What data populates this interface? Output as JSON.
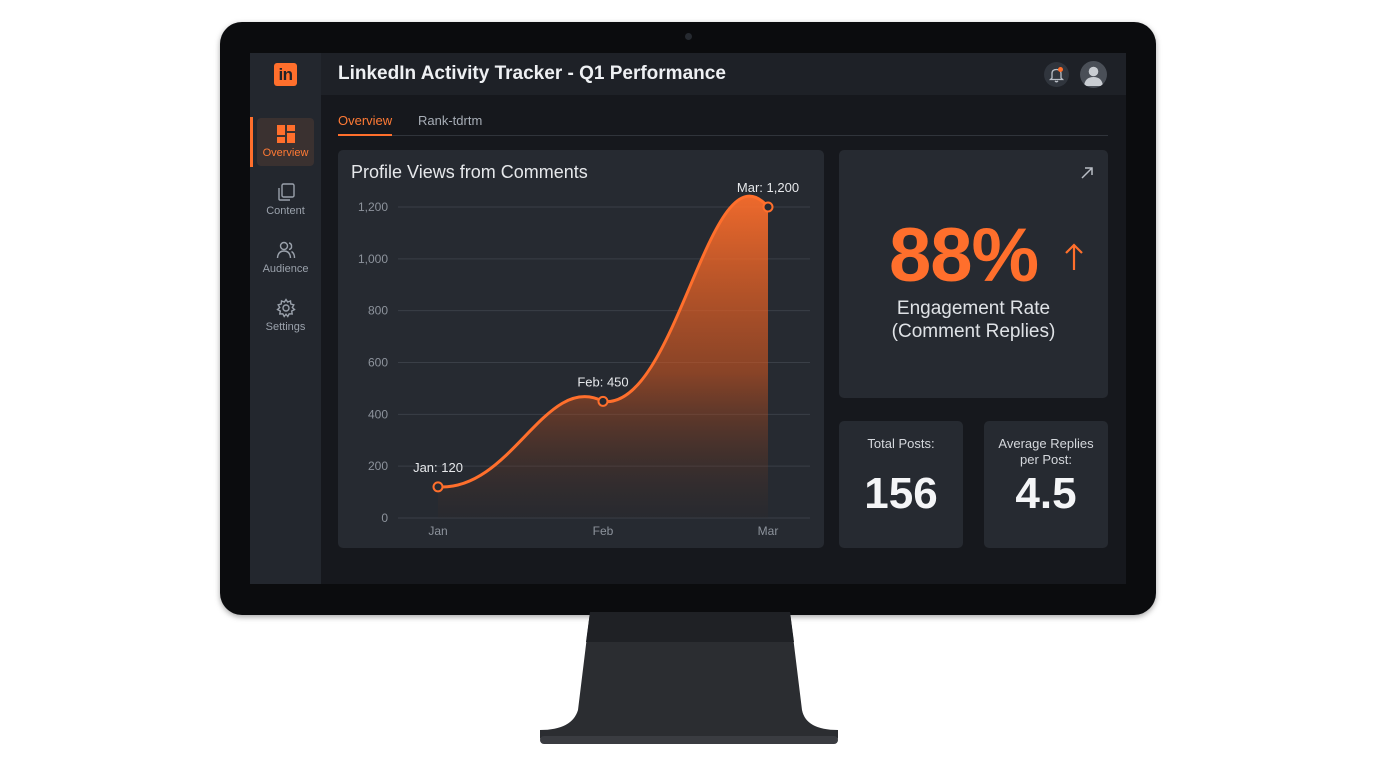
{
  "app": {
    "title": "LinkedIn Activity Tracker - Q1 Performance",
    "logo_text": "in",
    "accent": "#ff6f2c",
    "icons": [
      "bell-icon",
      "avatar-icon"
    ]
  },
  "sidebar": {
    "items": [
      {
        "label": "Overview",
        "icon": "dashboard-icon",
        "active": true
      },
      {
        "label": "Content",
        "icon": "copy-icon",
        "active": false
      },
      {
        "label": "Audience",
        "icon": "users-icon",
        "active": false
      },
      {
        "label": "Settings",
        "icon": "gear-icon",
        "active": false
      }
    ]
  },
  "tabs": [
    {
      "label": "Overview",
      "active": true
    },
    {
      "label": "Rank-tdrtm",
      "active": false
    }
  ],
  "chart_card": {
    "title": "Profile Views from Comments"
  },
  "chart_data": {
    "type": "area",
    "title": "Profile Views from Comments",
    "categories": [
      "Jan",
      "Feb",
      "Mar"
    ],
    "series": [
      {
        "values": [
          120,
          450,
          1200
        ]
      }
    ],
    "data_labels": [
      "Jan: 120",
      "Feb: 450",
      "Mar: 1,200"
    ],
    "ylim": [
      0,
      1200
    ],
    "yticks": [
      "0",
      "200",
      "400",
      "600",
      "800",
      "1,000",
      "1,200"
    ],
    "grid": true,
    "color": "#ff6f2c"
  },
  "engagement": {
    "value": "88%",
    "label_line1": "Engagement Rate",
    "label_line2": "(Comment Replies)",
    "trend": "up"
  },
  "stats": {
    "total_posts_label": "Total Posts:",
    "total_posts_value": "156",
    "avg_replies_label_line1": "Average Replies",
    "avg_replies_label_line2": "per Post:",
    "avg_replies_value": "4.5"
  }
}
